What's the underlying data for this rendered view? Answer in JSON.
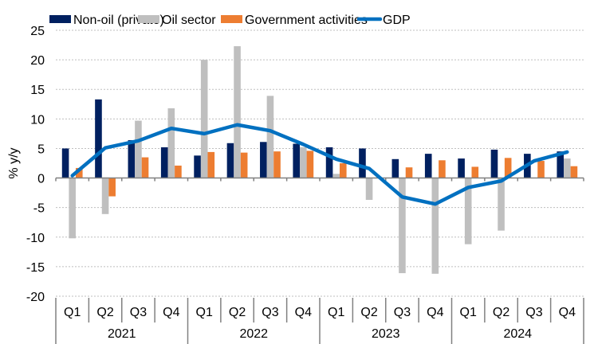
{
  "chart_data": {
    "type": "bar",
    "title": "",
    "xlabel": "",
    "ylabel": "% y/y",
    "ylim": [
      -20,
      25
    ],
    "yticks": [
      25,
      20,
      15,
      10,
      5,
      0,
      -5,
      -10,
      -15,
      -20
    ],
    "grid": true,
    "legend_position": "top",
    "categories": [
      "Q1",
      "Q2",
      "Q3",
      "Q4",
      "Q1",
      "Q2",
      "Q3",
      "Q4",
      "Q1",
      "Q2",
      "Q3",
      "Q4",
      "Q1",
      "Q2",
      "Q3",
      "Q4"
    ],
    "groups": [
      {
        "label": "2021",
        "span": 4
      },
      {
        "label": "2022",
        "span": 4
      },
      {
        "label": "2023",
        "span": 4
      },
      {
        "label": "2024",
        "span": 4
      }
    ],
    "series": [
      {
        "name": "Non-oil (private)",
        "type": "bar",
        "color": "#002060",
        "values": [
          5.0,
          13.3,
          6.4,
          5.2,
          3.8,
          5.9,
          6.1,
          5.8,
          5.2,
          5.0,
          3.2,
          4.1,
          3.3,
          4.8,
          4.1,
          4.5
        ]
      },
      {
        "name": "Oil sector",
        "type": "bar",
        "color": "#BFBFBF",
        "values": [
          -10.2,
          -6.1,
          9.7,
          11.8,
          20.0,
          22.3,
          13.9,
          5.2,
          0.7,
          -3.7,
          -16.1,
          -16.2,
          -11.2,
          -8.9,
          0.0,
          3.3
        ]
      },
      {
        "name": "Government activities",
        "type": "bar",
        "color": "#ED7D31",
        "values": [
          1.7,
          -3.1,
          3.5,
          2.1,
          4.4,
          4.3,
          4.5,
          4.6,
          2.5,
          0.0,
          1.8,
          3.0,
          1.9,
          3.4,
          2.9,
          2.0
        ]
      },
      {
        "name": "GDP",
        "type": "line",
        "color": "#0070C0",
        "values": [
          0.4,
          5.1,
          6.3,
          8.4,
          7.5,
          9.0,
          8.0,
          5.7,
          3.2,
          1.6,
          -3.2,
          -4.4,
          -1.6,
          -0.5,
          2.9,
          4.4
        ]
      }
    ]
  }
}
